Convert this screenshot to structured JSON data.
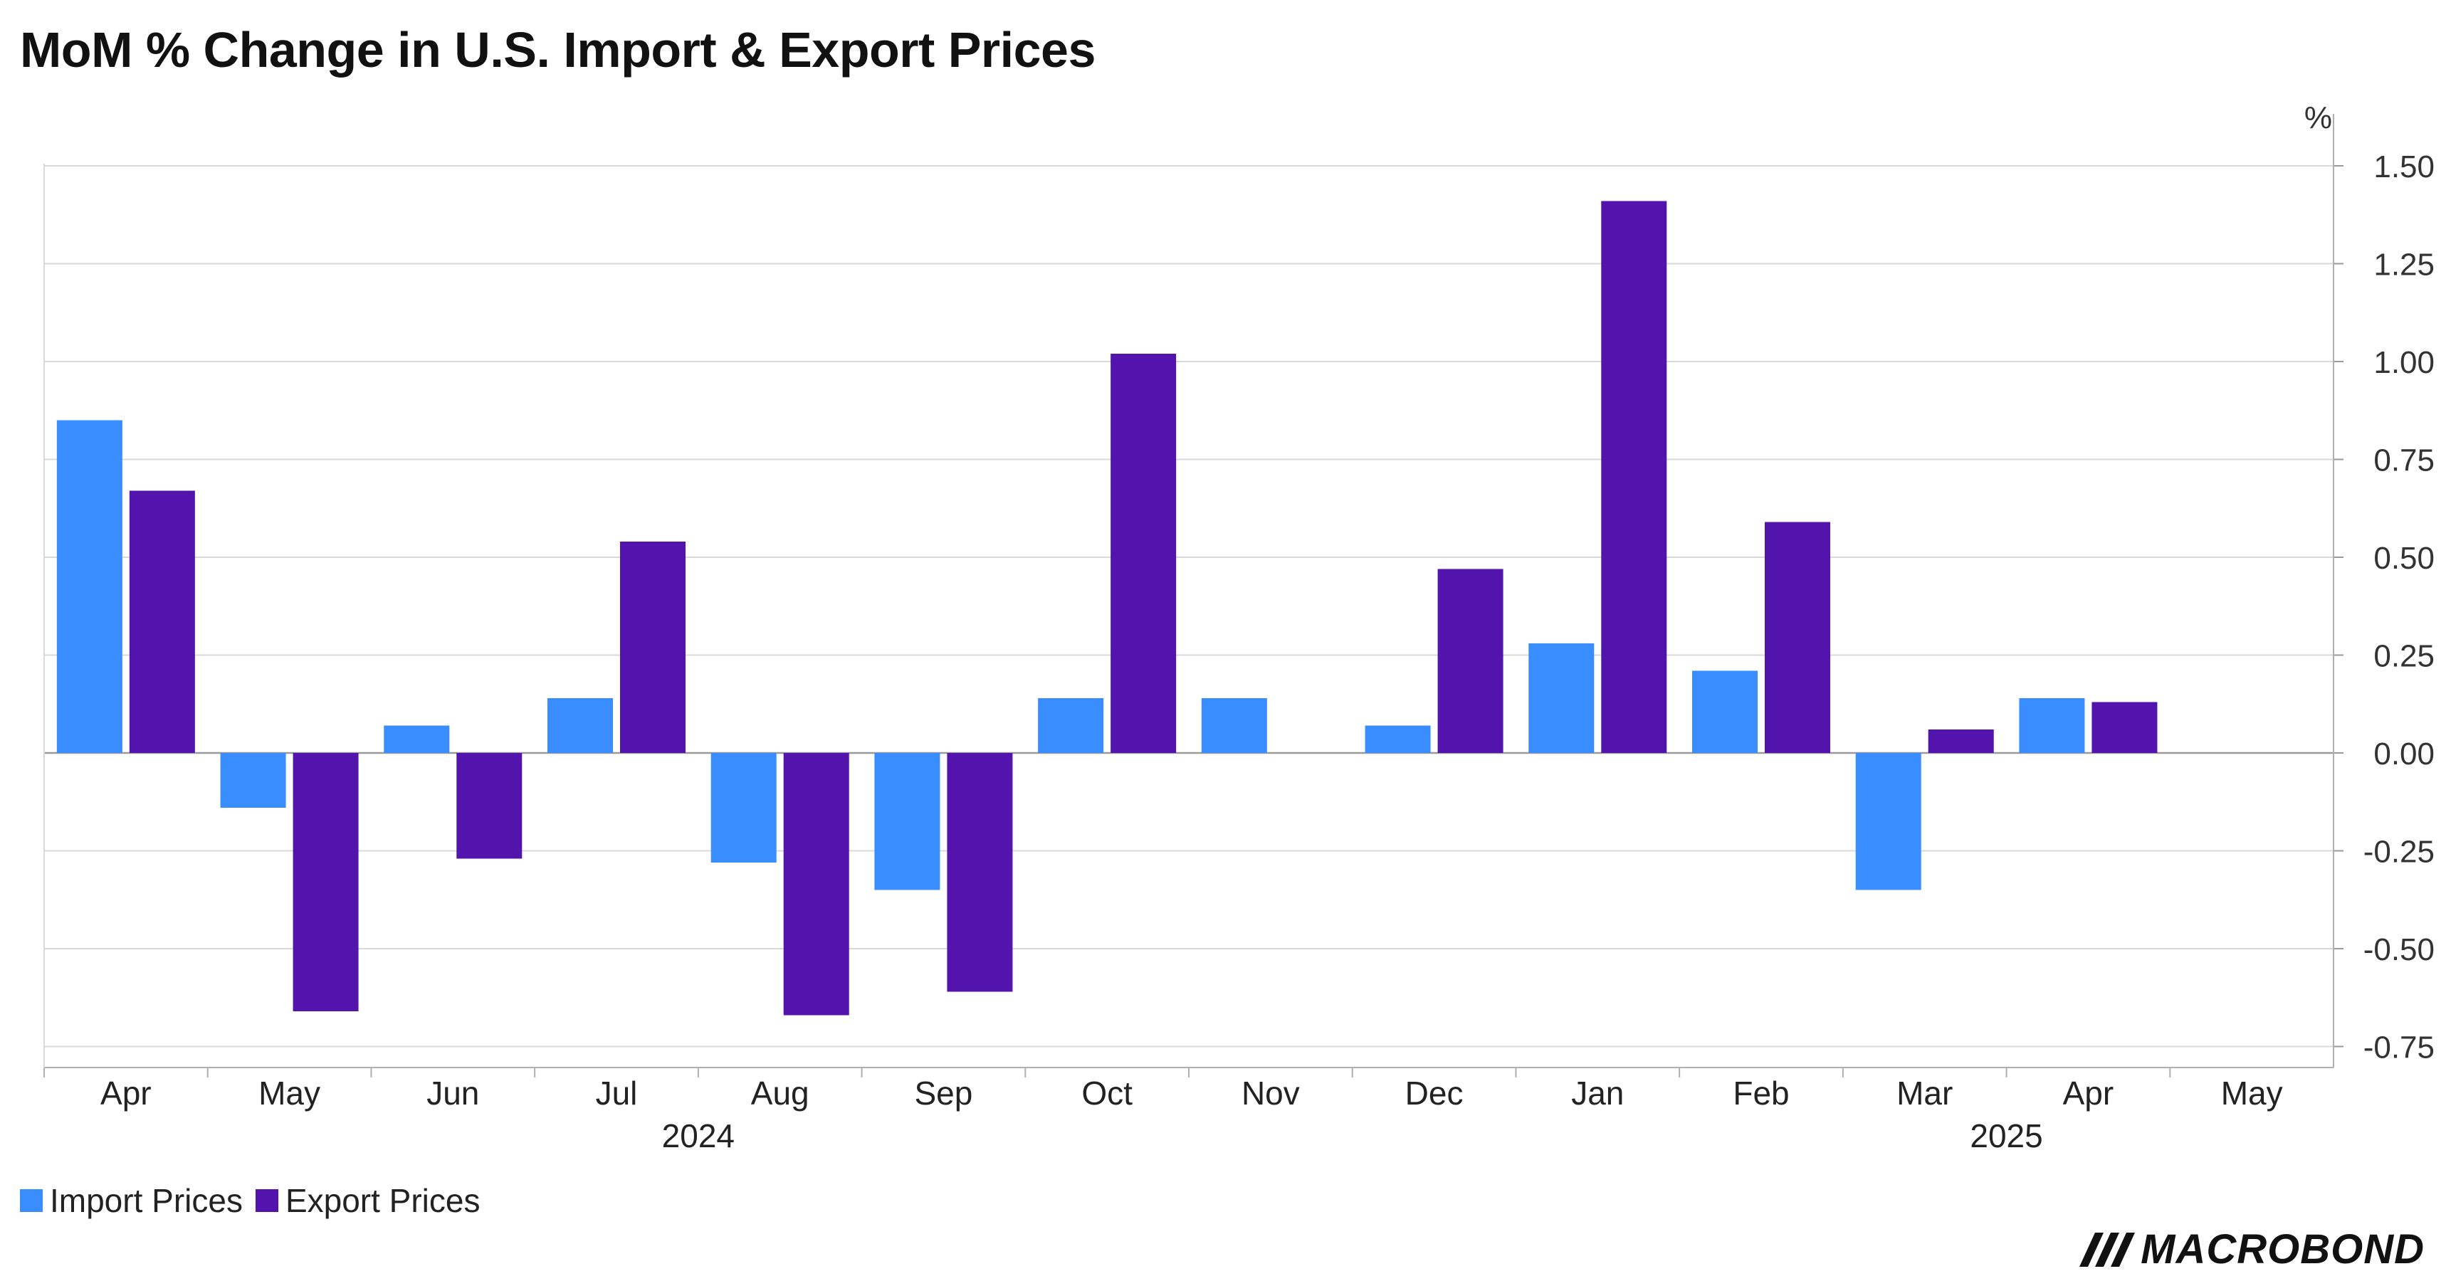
{
  "chart_data": {
    "type": "bar",
    "title": "MoM % Change in U.S. Import & Export Prices",
    "ylabel": "%",
    "ylim": [
      -0.8,
      1.6
    ],
    "yticks": [
      "1.50",
      "1.25",
      "1.00",
      "0.75",
      "0.50",
      "0.25",
      "0.00",
      "-0.25",
      "-0.50",
      "-0.75"
    ],
    "categories": [
      "Apr",
      "May",
      "Jun",
      "Jul",
      "Aug",
      "Sep",
      "Oct",
      "Nov",
      "Dec",
      "Jan",
      "Feb",
      "Mar",
      "Apr",
      "May"
    ],
    "year_labels": [
      {
        "label": "2024",
        "between": [
          "Jul",
          "Aug"
        ]
      },
      {
        "label": "2025",
        "between": [
          "Mar",
          "Apr"
        ]
      }
    ],
    "series": [
      {
        "name": "Import Prices",
        "color": "#3A8DFF",
        "values": [
          0.85,
          -0.14,
          0.07,
          0.14,
          -0.28,
          -0.35,
          0.14,
          0.14,
          0.07,
          0.28,
          0.21,
          -0.35,
          0.14,
          null
        ]
      },
      {
        "name": "Export Prices",
        "color": "#5214AD",
        "values": [
          0.67,
          -0.66,
          -0.27,
          0.54,
          -0.67,
          -0.61,
          1.02,
          null,
          0.47,
          1.41,
          0.59,
          0.06,
          0.13,
          null
        ]
      }
    ],
    "grid": true,
    "axis_side": "right",
    "legend_position": "bottom-left"
  },
  "brand": {
    "name": "MACROBOND"
  }
}
